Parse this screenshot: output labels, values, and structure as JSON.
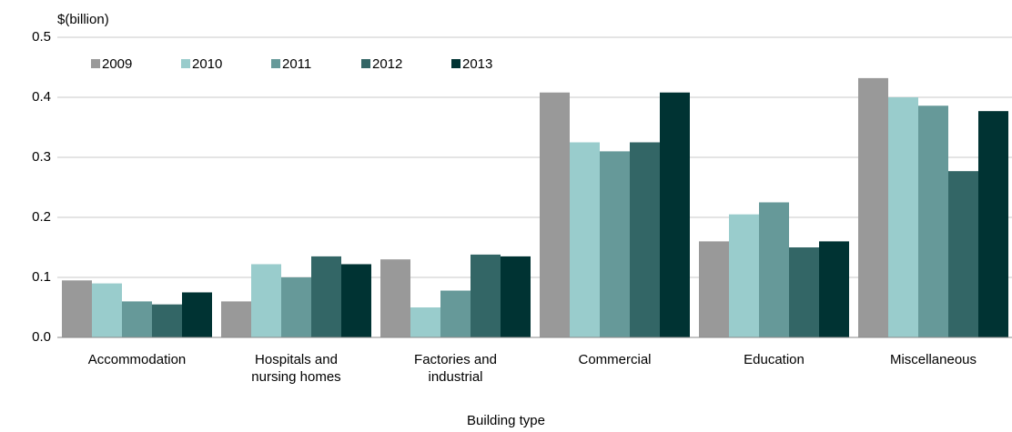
{
  "chart_data": {
    "type": "bar",
    "title": "$(billion)",
    "x_label": "Building type",
    "categories": [
      "Accommodation",
      "Hospitals and\nnursing homes",
      "Factories and\nindustrial",
      "Commercial",
      "Education",
      "Miscellaneous"
    ],
    "series": [
      {
        "name": "2009",
        "color": "#999999",
        "values": [
          0.095,
          0.06,
          0.13,
          0.408,
          0.16,
          0.432
        ]
      },
      {
        "name": "2010",
        "color": "#99cccc",
        "values": [
          0.09,
          0.122,
          0.05,
          0.325,
          0.205,
          0.4
        ]
      },
      {
        "name": "2011",
        "color": "#669999",
        "values": [
          0.06,
          0.1,
          0.078,
          0.31,
          0.225,
          0.386
        ]
      },
      {
        "name": "2012",
        "color": "#336666",
        "values": [
          0.055,
          0.135,
          0.138,
          0.325,
          0.15,
          0.277
        ]
      },
      {
        "name": "2013",
        "color": "#003333",
        "values": [
          0.075,
          0.122,
          0.135,
          0.408,
          0.16,
          0.377
        ]
      }
    ],
    "ylim": [
      0,
      0.5
    ],
    "yticks": [
      {
        "value": 0,
        "label": "0.0"
      },
      0.1,
      0.2,
      0.3,
      0.4,
      0.5
    ],
    "grid": true,
    "legend": "top-left"
  }
}
